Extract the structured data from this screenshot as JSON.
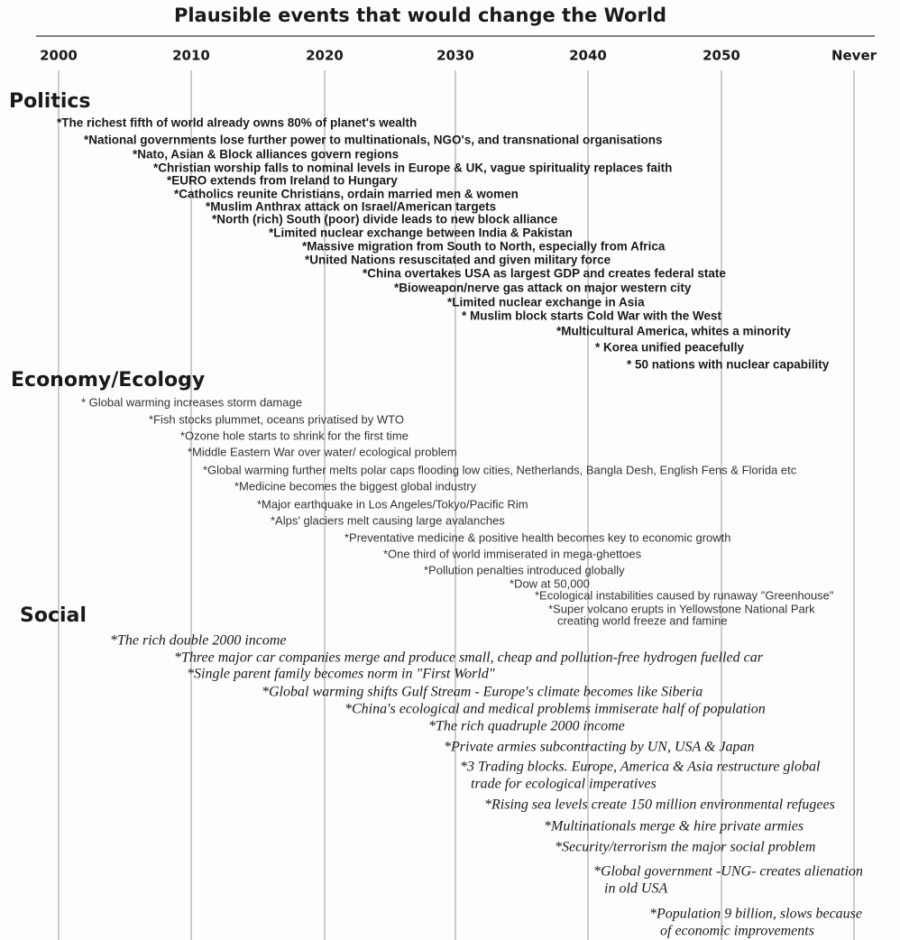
{
  "header": {
    "title": "Plausible events that would change the World",
    "years": [
      "2000",
      "2010",
      "2020",
      "2030",
      "2040",
      "2050",
      "Never"
    ]
  },
  "sections": [
    {
      "heading": "Politics",
      "events": [
        [
          "*The richest fifth of world already owns 80% of planet's wealth"
        ],
        [
          "*National governments lose further power to multinationals, NGO's, and transnational organisations"
        ],
        [
          "*Nato, Asian & Block alliances govern regions"
        ],
        [
          "*Christian worship falls to nominal levels in Europe & UK, vague spirituality replaces faith"
        ],
        [
          "*EURO extends from Ireland to Hungary"
        ],
        [
          "*Catholics reunite Christians, ordain married men & women"
        ],
        [
          "*Muslim Anthrax attack on Israel/American targets"
        ],
        [
          "*North (rich) South (poor) divide leads to new block alliance"
        ],
        [
          "*Limited nuclear exchange between India & Pakistan"
        ],
        [
          "*Massive migration from South to North, especially from Africa"
        ],
        [
          "*United Nations resuscitated and given military force"
        ],
        [
          "*China overtakes USA as largest GDP and creates federal state"
        ],
        [
          "*Bioweapon/nerve gas attack on major western city"
        ],
        [
          "*Limited nuclear exchange in Asia"
        ],
        [
          "* Muslim block starts Cold War with the West"
        ],
        [
          "*Multicultural America, whites a minority"
        ],
        [
          "* Korea unified peacefully"
        ],
        [
          "* 50 nations with nuclear capability"
        ]
      ]
    },
    {
      "heading": "Economy/Ecology",
      "events": [
        [
          "* Global warming increases storm damage"
        ],
        [
          "*Fish stocks plummet, oceans privatised by WTO"
        ],
        [
          "*Ozone hole starts to shrink for the first time"
        ],
        [
          "*Middle Eastern War over water/ ecological problem"
        ],
        [
          "*Global warming further melts polar caps flooding low cities, Netherlands, Bangla Desh, English Fens & Florida etc"
        ],
        [
          "*Medicine becomes the biggest global industry"
        ],
        [
          "*Major earthquake in Los Angeles/Tokyo/Pacific Rim"
        ],
        [
          "*Alps' glaciers melt causing large avalanches"
        ],
        [
          "*Preventative medicine & positive health becomes key to economic growth"
        ],
        [
          "*One third of world immiserated in mega-ghettoes"
        ],
        [
          "*Pollution penalties introduced globally"
        ],
        [
          "*Dow at 50,000"
        ],
        [
          "*Ecological instabilities caused by runaway \"Greenhouse\""
        ],
        [
          "*Super volcano erupts in Yellowstone National Park",
          "creating world freeze and famine"
        ]
      ]
    },
    {
      "heading": "Social",
      "events": [
        [
          "*The rich double 2000 income"
        ],
        [
          "*Three major car companies merge and produce small, cheap and pollution-free  hydrogen fuelled car"
        ],
        [
          "*Single parent family becomes norm in \"First World\""
        ],
        [
          "*Global warming shifts Gulf Stream - Europe's climate becomes like Siberia"
        ],
        [
          "*China's ecological and medical problems immiserate half of population"
        ],
        [
          "*The rich quadruple 2000 income"
        ],
        [
          "*Private armies subcontracting by UN, USA & Japan"
        ],
        [
          "*3 Trading blocks. Europe, America & Asia restructure global",
          "trade for ecological imperatives"
        ],
        [
          "*Rising sea levels create 150 million environmental refugees"
        ],
        [
          "*Multinationals merge &  hire private armies"
        ],
        [
          "*Security/terrorism the major social problem"
        ],
        [
          "*Global government -UNG- creates alienation",
          "in old USA"
        ],
        [
          "*Population 9 billion, slows because",
          "of economic improvements"
        ]
      ]
    }
  ]
}
